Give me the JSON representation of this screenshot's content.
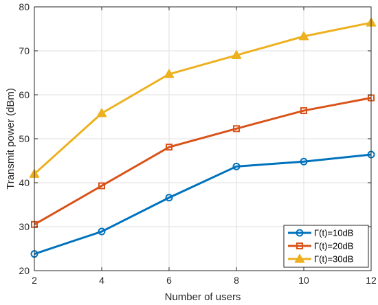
{
  "chart_data": {
    "type": "line",
    "xlabel": "Number of users",
    "ylabel": "Transmit power (dBm)",
    "x": [
      2,
      4,
      6,
      8,
      10,
      12
    ],
    "xlim": [
      2,
      12
    ],
    "ylim": [
      20,
      80
    ],
    "xticks": [
      2,
      4,
      6,
      8,
      10,
      12
    ],
    "yticks": [
      20,
      30,
      40,
      50,
      60,
      70,
      80
    ],
    "grid": true,
    "legend_position": "bottom-right",
    "series": [
      {
        "name": "Γ(t)=10dB",
        "color": "#0072BD",
        "marker": "circle",
        "values": [
          23.8,
          28.9,
          36.6,
          43.7,
          44.8,
          46.4
        ]
      },
      {
        "name": "Γ(t)=20dB",
        "color": "#D95319",
        "marker": "square",
        "values": [
          30.5,
          39.3,
          48.1,
          52.3,
          56.4,
          59.3
        ]
      },
      {
        "name": "Γ(t)=30dB",
        "color": "#EDB120",
        "marker": "triangle",
        "values": [
          42.0,
          55.8,
          64.7,
          69.0,
          73.3,
          76.4
        ]
      }
    ]
  }
}
